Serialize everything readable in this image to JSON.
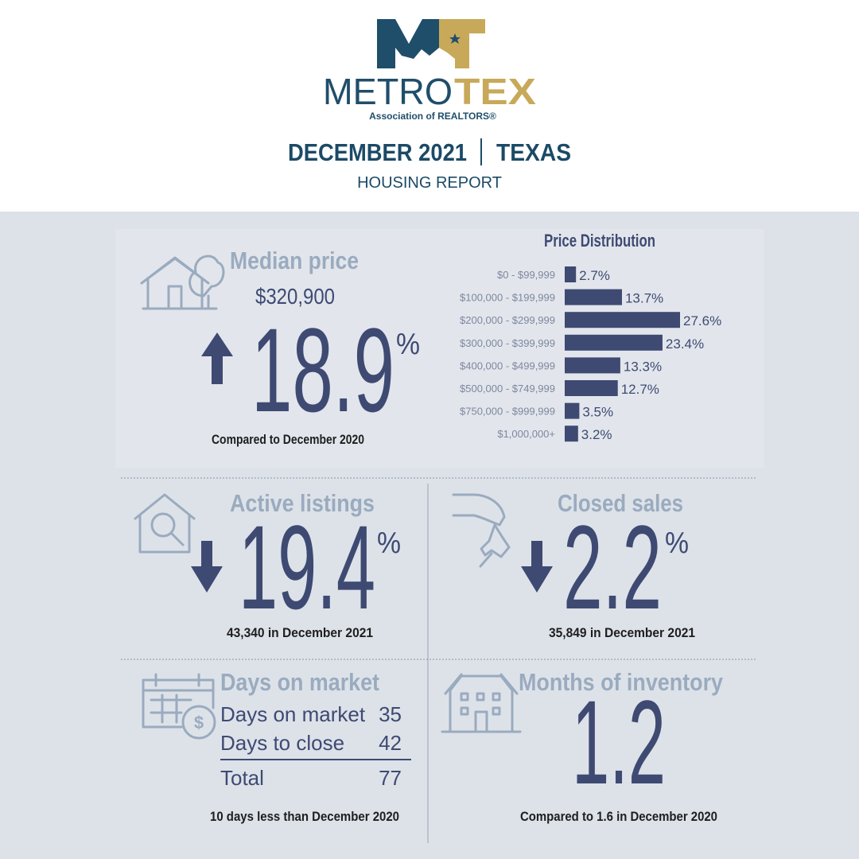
{
  "logo": {
    "name_part1": "METRO",
    "name_part2": "TEX",
    "tagline": "Association of REALTORS®"
  },
  "header": {
    "title": "DECEMBER 2021",
    "location": "TEXAS",
    "subtitle": "HOUSING REPORT"
  },
  "median": {
    "label": "Median price",
    "price": "$320,900",
    "change": "18.9",
    "unit": "%",
    "note": "Compared to December 2020"
  },
  "active": {
    "label": "Active listings",
    "change": "19.4",
    "unit": "%",
    "note": "43,340 in December 2021"
  },
  "closed": {
    "label": "Closed sales",
    "change": "2.2",
    "unit": "%",
    "note": "35,849 in December 2021"
  },
  "days": {
    "label": "Days on market",
    "rows": [
      [
        "Days on market",
        35
      ],
      [
        "Days to close",
        42
      ],
      [
        "Total",
        77
      ]
    ],
    "note": "10 days less than December 2020"
  },
  "inventory": {
    "label": "Months of inventory",
    "value": "1.2",
    "note": "Compared to 1.6 in December 2020"
  },
  "chart_data": {
    "type": "bar",
    "orientation": "horizontal",
    "title": "Price Distribution",
    "categories": [
      "$0 - $99,999",
      "$100,000 - $199,999",
      "$200,000 - $299,999",
      "$300,000 - $399,999",
      "$400,000 - $499,999",
      "$500,000 - $749,999",
      "$750,000 - $999,999",
      "$1,000,000+"
    ],
    "values": [
      2.7,
      13.7,
      27.6,
      23.4,
      13.3,
      12.7,
      3.5,
      3.2
    ],
    "value_labels": [
      "2.7%",
      "13.7%",
      "27.6%",
      "23.4%",
      "13.3%",
      "12.7%",
      "3.5%",
      "3.2%"
    ],
    "color": "#3e4a72"
  }
}
